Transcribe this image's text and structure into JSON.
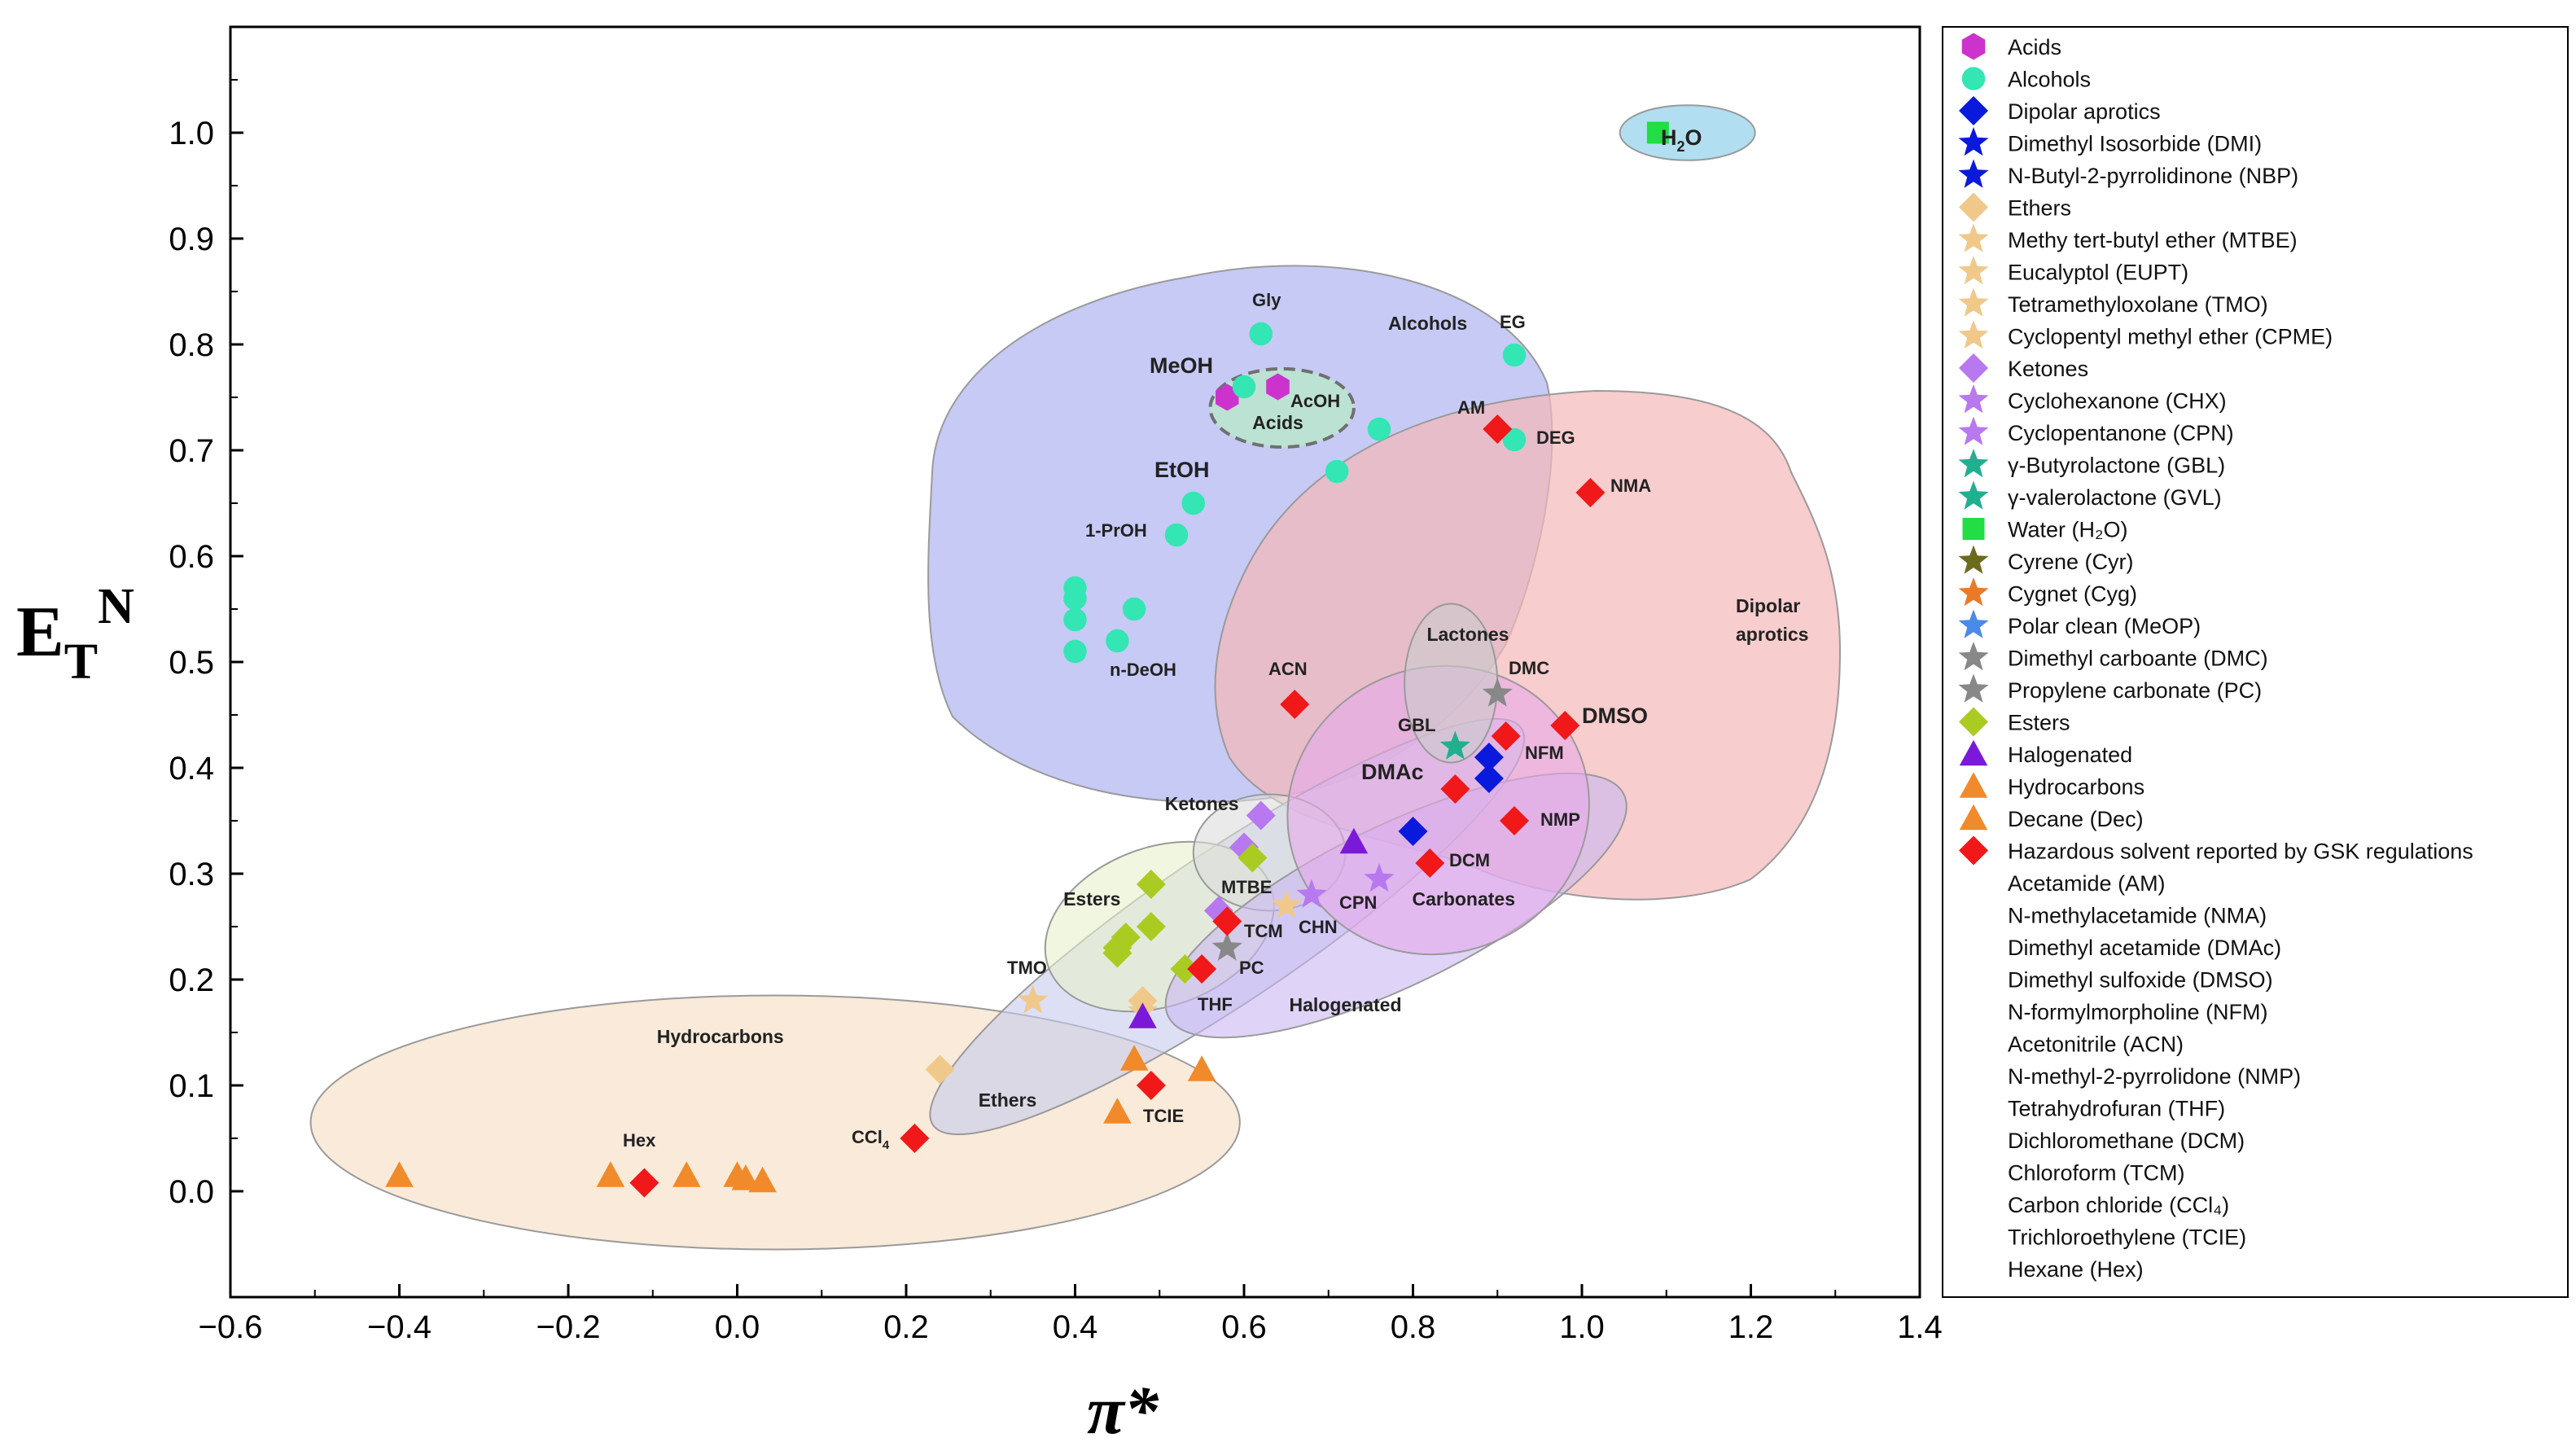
{
  "chart_data": {
    "type": "scatter",
    "title": "",
    "xlabel": "π*",
    "ylabel_main": "E",
    "ylabel_sub": "T",
    "ylabel_sup": "N",
    "xlim": [
      -0.6,
      1.4
    ],
    "ylim": [
      -0.1,
      1.1
    ],
    "xticks": [
      "−0.6",
      "−0.4",
      "−0.2",
      "0.0",
      "0.2",
      "0.4",
      "0.6",
      "0.8",
      "1.0",
      "1.2",
      "1.4"
    ],
    "yticks": [
      "0.0",
      "0.1",
      "0.2",
      "0.3",
      "0.4",
      "0.5",
      "0.6",
      "0.7",
      "0.8",
      "0.9",
      "1.0"
    ],
    "regions": [
      {
        "name": "Hydrocarbons",
        "label": "Hydrocarbons",
        "fill": "#f5dcc0",
        "cx": 0.045,
        "cy": 0.065,
        "rx": 0.55,
        "ry": 0.12,
        "rot": 0,
        "lx": -0.02,
        "ly": 0.14
      },
      {
        "name": "Ethers",
        "label": "Ethers",
        "fill": "#c7ccee",
        "cx": 0.58,
        "cy": 0.25,
        "rx": 0.42,
        "ry": 0.07,
        "rot": -34,
        "lx": 0.32,
        "ly": 0.08
      },
      {
        "name": "Esters",
        "label": "Esters",
        "fill": "#e8f0cc",
        "cx": 0.5,
        "cy": 0.25,
        "rx": 0.14,
        "ry": 0.075,
        "rot": -20,
        "lx": 0.42,
        "ly": 0.27
      },
      {
        "name": "Ketones",
        "label": "Ketones",
        "fill": "#dcdcdc",
        "cx": 0.63,
        "cy": 0.32,
        "rx": 0.09,
        "ry": 0.055,
        "rot": 0,
        "lx": 0.55,
        "ly": 0.36
      },
      {
        "name": "Halogenated",
        "label": "Halogenated",
        "fill": "#c9b8f2",
        "cx": 0.78,
        "cy": 0.27,
        "rx": 0.3,
        "ry": 0.075,
        "rot": -26,
        "lx": 0.72,
        "ly": 0.17
      },
      {
        "name": "Carbonates",
        "label": "Carbonates",
        "fill": "#e6a8ea",
        "cx": 0.83,
        "cy": 0.36,
        "rx": 0.18,
        "ry": 0.135,
        "rot": -22,
        "lx": 0.86,
        "ly": 0.27
      },
      {
        "name": "Lactones",
        "label": "Lactones",
        "fill": "#cccccc",
        "cx": 0.845,
        "cy": 0.48,
        "rx": 0.055,
        "ry": 0.075,
        "rot": 0,
        "lx": 0.865,
        "ly": 0.52
      },
      {
        "name": "Acids",
        "label": "Acids",
        "fill": "#b8e6cc",
        "cx": 0.645,
        "cy": 0.74,
        "rx": 0.085,
        "ry": 0.037,
        "rot": 0,
        "lx": 0.64,
        "ly": 0.72
      },
      {
        "name": "Water",
        "label": "",
        "fill": "#a8dcf0",
        "cx": 1.125,
        "cy": 1.0,
        "rx": 0.08,
        "ry": 0.026,
        "rot": 0,
        "lx": 1.1,
        "ly": 1.0
      }
    ],
    "region_labels": {
      "alcohols": "Alcohols",
      "dipolar_line1": "Dipolar",
      "dipolar_line2": "aprotics"
    },
    "point_labels": {
      "gly": "Gly",
      "eg": "EG",
      "meoh": "MeOH",
      "acoh": "AcOH",
      "am": "AM",
      "deg": "DEG",
      "etoh": "EtOH",
      "nma": "NMA",
      "prop": "1-PrOH",
      "ndeoh": "n-DeOH",
      "acn": "ACN",
      "dmc": "DMC",
      "gbl": "GBL",
      "nfm": "NFM",
      "dmso": "DMSO",
      "dmac": "DMAc",
      "nmp": "NMP",
      "dcm": "DCM",
      "mtbe": "MTBE",
      "cpn": "CPN",
      "chn": "CHN",
      "tcm": "TCM",
      "pc": "PC",
      "tmo": "TMO",
      "thf": "THF",
      "hex": "Hex",
      "ccl4": "CCl",
      "ccl4_sub": "4",
      "tcie": "TCIE",
      "h2o_main": "H",
      "h2o_sub": "2",
      "h2o_tail": "O"
    },
    "series": [
      {
        "name": "Acids",
        "marker": "hexagon",
        "color": "#cc33cc",
        "points": [
          [
            0.58,
            0.75
          ],
          [
            0.64,
            0.76
          ]
        ]
      },
      {
        "name": "Alcohols",
        "marker": "circle",
        "color": "#33e6b3",
        "points": [
          [
            0.62,
            0.81
          ],
          [
            0.92,
            0.79
          ],
          [
            0.6,
            0.76
          ],
          [
            0.76,
            0.72
          ],
          [
            0.92,
            0.71
          ],
          [
            0.71,
            0.68
          ],
          [
            0.54,
            0.65
          ],
          [
            0.52,
            0.62
          ],
          [
            0.4,
            0.57
          ],
          [
            0.4,
            0.56
          ],
          [
            0.4,
            0.54
          ],
          [
            0.47,
            0.55
          ],
          [
            0.45,
            0.52
          ],
          [
            0.4,
            0.51
          ]
        ]
      },
      {
        "name": "Dipolar aprotics",
        "marker": "diamond",
        "color": "#0a1adc",
        "points": [
          [
            0.89,
            0.41
          ],
          [
            0.89,
            0.39
          ],
          [
            0.8,
            0.34
          ]
        ]
      },
      {
        "name": "Ethers",
        "marker": "diamond",
        "color": "#f0c98a",
        "points": [
          [
            0.24,
            0.115
          ],
          [
            0.48,
            0.18
          ]
        ]
      },
      {
        "name": "Ethers (stars)",
        "marker": "star",
        "color": "#f0c98a",
        "points": [
          [
            0.35,
            0.18
          ],
          [
            0.65,
            0.27
          ],
          [
            0.48,
            0.17
          ]
        ]
      },
      {
        "name": "Ketones",
        "marker": "diamond",
        "color": "#b878f0",
        "points": [
          [
            0.62,
            0.355
          ],
          [
            0.6,
            0.325
          ],
          [
            0.57,
            0.265
          ]
        ]
      },
      {
        "name": "Ketones (stars)",
        "marker": "star",
        "color": "#b878f0",
        "points": [
          [
            0.68,
            0.28
          ],
          [
            0.76,
            0.295
          ]
        ]
      },
      {
        "name": "Lactones",
        "marker": "star",
        "color": "#20b090",
        "points": [
          [
            0.85,
            0.42
          ]
        ]
      },
      {
        "name": "Water",
        "marker": "square",
        "color": "#22dd44",
        "points": [
          [
            1.09,
            1.0
          ]
        ]
      },
      {
        "name": "Carbonates",
        "marker": "star",
        "color": "#888888",
        "points": [
          [
            0.9,
            0.47
          ],
          [
            0.58,
            0.23
          ]
        ]
      },
      {
        "name": "Esters",
        "marker": "diamond",
        "color": "#aacc22",
        "points": [
          [
            0.61,
            0.315
          ],
          [
            0.49,
            0.29
          ],
          [
            0.49,
            0.25
          ],
          [
            0.46,
            0.24
          ],
          [
            0.45,
            0.23
          ],
          [
            0.45,
            0.225
          ],
          [
            0.53,
            0.21
          ]
        ]
      },
      {
        "name": "Halogenated",
        "marker": "triangle",
        "color": "#7a1ad8",
        "points": [
          [
            0.73,
            0.33
          ],
          [
            0.48,
            0.165
          ]
        ]
      },
      {
        "name": "Hydrocarbons",
        "marker": "triangle",
        "color": "#f08a2a",
        "points": [
          [
            -0.4,
            0.015
          ],
          [
            -0.15,
            0.015
          ],
          [
            -0.06,
            0.015
          ],
          [
            0.0,
            0.015
          ],
          [
            0.01,
            0.012
          ],
          [
            0.03,
            0.01
          ],
          [
            0.47,
            0.125
          ],
          [
            0.55,
            0.115
          ],
          [
            0.45,
            0.075
          ]
        ]
      },
      {
        "name": "Hazardous solvent reported by GSK regulations",
        "marker": "diamond",
        "color": "#f01818",
        "points": [
          [
            0.9,
            0.72
          ],
          [
            1.01,
            0.66
          ],
          [
            0.66,
            0.46
          ],
          [
            0.98,
            0.44
          ],
          [
            0.91,
            0.43
          ],
          [
            0.85,
            0.38
          ],
          [
            0.92,
            0.35
          ],
          [
            0.82,
            0.31
          ],
          [
            0.58,
            0.255
          ],
          [
            0.55,
            0.21
          ],
          [
            0.49,
            0.1
          ],
          [
            0.21,
            0.05
          ],
          [
            -0.11,
            0.008
          ]
        ]
      }
    ],
    "legend": [
      {
        "label": "Acids",
        "marker": "hexagon",
        "color": "#cc33cc"
      },
      {
        "label": "Alcohols",
        "marker": "circle",
        "color": "#33e6b3"
      },
      {
        "label": "Dipolar aprotics",
        "marker": "diamond",
        "color": "#0a1adc"
      },
      {
        "label": "Dimethyl Isosorbide (DMI)",
        "marker": "star",
        "color": "#0a1adc"
      },
      {
        "label": "N-Butyl-2-pyrrolidinone (NBP)",
        "marker": "star",
        "color": "#0a1adc"
      },
      {
        "label": "Ethers",
        "marker": "diamond",
        "color": "#f0c98a"
      },
      {
        "label": "Methy tert-butyl ether (MTBE)",
        "marker": "star",
        "color": "#f0c98a"
      },
      {
        "label": "Eucalyptol (EUPT)",
        "marker": "star",
        "color": "#f0c98a"
      },
      {
        "label": "Tetramethyloxolane (TMO)",
        "marker": "star",
        "color": "#f0c98a"
      },
      {
        "label": "Cyclopentyl methyl ether (CPME)",
        "marker": "star",
        "color": "#f0c98a"
      },
      {
        "label": "Ketones",
        "marker": "diamond",
        "color": "#b878f0"
      },
      {
        "label": "Cyclohexanone (CHX)",
        "marker": "star",
        "color": "#b878f0"
      },
      {
        "label": "Cyclopentanone (CPN)",
        "marker": "star",
        "color": "#b878f0"
      },
      {
        "label": "γ-Butyrolactone (GBL)",
        "marker": "star",
        "color": "#20b090"
      },
      {
        "label": "γ-valerolactone (GVL)",
        "marker": "star",
        "color": "#20b090"
      },
      {
        "label": "Water (H₂O)",
        "marker": "square",
        "color": "#22dd44"
      },
      {
        "label": "Cyrene (Cyr)",
        "marker": "star",
        "color": "#6b6b1e"
      },
      {
        "label": "Cygnet (Cyg)",
        "marker": "star",
        "color": "#e87a2a"
      },
      {
        "label": "Polar clean (MeOP)",
        "marker": "star",
        "color": "#4a8ae8"
      },
      {
        "label": "Dimethyl carboante (DMC)",
        "marker": "star",
        "color": "#888888"
      },
      {
        "label": "Propylene carbonate (PC)",
        "marker": "star",
        "color": "#888888"
      },
      {
        "label": "Esters",
        "marker": "diamond",
        "color": "#aacc22"
      },
      {
        "label": "Halogenated",
        "marker": "triangle",
        "color": "#7a1ad8"
      },
      {
        "label": "Hydrocarbons",
        "marker": "triangle",
        "color": "#f08a2a"
      },
      {
        "label": "Decane (Dec)",
        "marker": "triangle",
        "color": "#f08a2a"
      },
      {
        "label": "Hazardous solvent reported by GSK regulations",
        "marker": "diamond",
        "color": "#f01818"
      },
      {
        "label": "Acetamide (AM)",
        "marker": "none",
        "color": ""
      },
      {
        "label": "N-methylacetamide (NMA)",
        "marker": "none",
        "color": ""
      },
      {
        "label": "Dimethyl acetamide (DMAc)",
        "marker": "none",
        "color": ""
      },
      {
        "label": "Dimethyl sulfoxide (DMSO)",
        "marker": "none",
        "color": ""
      },
      {
        "label": "N-formylmorpholine (NFM)",
        "marker": "none",
        "color": ""
      },
      {
        "label": "Acetonitrile (ACN)",
        "marker": "none",
        "color": ""
      },
      {
        "label": "N-methyl-2-pyrrolidone (NMP)",
        "marker": "none",
        "color": ""
      },
      {
        "label": "Tetrahydrofuran (THF)",
        "marker": "none",
        "color": ""
      },
      {
        "label": "Dichloromethane (DCM)",
        "marker": "none",
        "color": ""
      },
      {
        "label": "Chloroform (TCM)",
        "marker": "none",
        "color": ""
      },
      {
        "label": "Carbon chloride (CCl₄)",
        "marker": "none",
        "color": ""
      },
      {
        "label": "Trichloroethylene (TCIE)",
        "marker": "none",
        "color": ""
      },
      {
        "label": "Hexane (Hex)",
        "marker": "none",
        "color": ""
      }
    ]
  }
}
